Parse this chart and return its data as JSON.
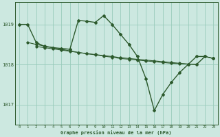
{
  "title": "Graphe pression niveau de la mer (hPa)",
  "bg_color": "#cce8e0",
  "grid_color": "#99ccbb",
  "line_color": "#2d5a2d",
  "xlim": [
    -0.5,
    23.5
  ],
  "ylim": [
    1016.5,
    1019.55
  ],
  "yticks": [
    1017,
    1018,
    1019
  ],
  "xticks": [
    0,
    1,
    2,
    3,
    4,
    5,
    6,
    7,
    8,
    9,
    10,
    11,
    12,
    13,
    14,
    15,
    16,
    17,
    18,
    19,
    20,
    21,
    22,
    23
  ],
  "main_x": [
    0,
    1,
    2,
    3,
    4,
    5,
    6,
    7,
    8,
    9,
    10,
    11,
    12,
    13,
    14,
    15,
    16,
    17,
    18,
    19,
    20,
    21,
    22,
    23
  ],
  "main_y": [
    1019.0,
    1019.0,
    1018.55,
    1018.45,
    1018.42,
    1018.4,
    1018.38,
    1019.1,
    1019.08,
    1019.05,
    1019.22,
    1019.0,
    1018.75,
    1018.5,
    1018.2,
    1017.65,
    1016.85,
    1017.25,
    1017.55,
    1017.8,
    1018.0,
    1018.2,
    1018.2,
    1018.15
  ],
  "flat1_x": [
    1,
    2,
    3,
    4,
    5,
    6,
    7,
    8,
    9,
    10,
    11,
    12,
    13,
    14,
    15,
    16,
    17,
    18,
    19,
    20,
    21,
    22,
    23
  ],
  "flat1_y": [
    1018.55,
    1018.5,
    1018.46,
    1018.42,
    1018.38,
    1018.34,
    1018.3,
    1018.27,
    1018.24,
    1018.21,
    1018.18,
    1018.15,
    1018.13,
    1018.11,
    1018.09,
    1018.07,
    1018.05,
    1018.03,
    1018.02,
    1018.01,
    1018.0,
    1018.2,
    1018.15
  ],
  "flat2_x": [
    2,
    3,
    4,
    5,
    6,
    7,
    8,
    9,
    10,
    11,
    12,
    13,
    14,
    15,
    16,
    17,
    18,
    19,
    20,
    21,
    22,
    23
  ],
  "flat2_y": [
    1018.45,
    1018.42,
    1018.39,
    1018.36,
    1018.33,
    1018.3,
    1018.27,
    1018.25,
    1018.22,
    1018.2,
    1018.17,
    1018.15,
    1018.13,
    1018.11,
    1018.09,
    1018.07,
    1018.05,
    1018.03,
    1018.01,
    1018.0,
    1018.2,
    1018.15
  ]
}
